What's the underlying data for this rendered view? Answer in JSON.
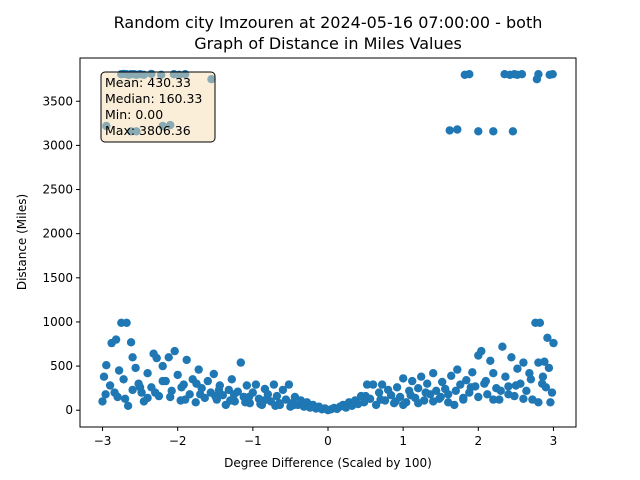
{
  "chart_data": {
    "type": "scatter",
    "title_line1": "Random city Imzouren at 2024-05-16 07:00:00  - both",
    "title_line2": "Graph of Distance in Miles Values",
    "xlabel": "Degree Difference (Scaled by 100)",
    "ylabel": "Distance (Miles)",
    "xlim": [
      -3.3,
      3.3
    ],
    "ylim": [
      -190,
      3990
    ],
    "x_ticks": [
      -3,
      -2,
      -1,
      0,
      1,
      2,
      3
    ],
    "y_ticks": [
      0,
      500,
      1000,
      1500,
      2000,
      2500,
      3000,
      3500
    ],
    "grid": false,
    "point_color": "#1f77b4",
    "stats_box": {
      "placement": "top-left",
      "lines": [
        "Mean: 430.33",
        "Median: 160.33",
        "Min: 0.00",
        "Max: 3806.36"
      ],
      "face_color": "#f5deb3",
      "edge_color": "#000000"
    },
    "points": [
      [
        -2.75,
        3806
      ],
      [
        -2.72,
        3810
      ],
      [
        -2.68,
        3806
      ],
      [
        -2.65,
        3800
      ],
      [
        -2.62,
        3806
      ],
      [
        -2.58,
        3806
      ],
      [
        -2.55,
        3800
      ],
      [
        -2.5,
        3806
      ],
      [
        -2.45,
        3800
      ],
      [
        -2.35,
        3810
      ],
      [
        -2.22,
        3800
      ],
      [
        -2.05,
        3806
      ],
      [
        -1.98,
        3800
      ],
      [
        -1.9,
        3806
      ],
      [
        -1.55,
        3750
      ],
      [
        -2.95,
        3220
      ],
      [
        -2.62,
        3160
      ],
      [
        -2.55,
        3160
      ],
      [
        -2.2,
        3220
      ],
      [
        -2.1,
        3230
      ],
      [
        1.62,
        3170
      ],
      [
        1.72,
        3180
      ],
      [
        1.82,
        3800
      ],
      [
        1.88,
        3806
      ],
      [
        2.0,
        3160
      ],
      [
        2.2,
        3160
      ],
      [
        2.35,
        3806
      ],
      [
        2.42,
        3800
      ],
      [
        2.48,
        3806
      ],
      [
        2.52,
        3800
      ],
      [
        2.58,
        3806
      ],
      [
        2.46,
        3160
      ],
      [
        2.78,
        3750
      ],
      [
        2.8,
        3806
      ],
      [
        2.95,
        3800
      ],
      [
        2.99,
        3806
      ],
      [
        -2.75,
        990
      ],
      [
        -2.68,
        990
      ],
      [
        -2.62,
        770
      ],
      [
        -2.82,
        800
      ],
      [
        -2.88,
        760
      ],
      [
        -2.95,
        510
      ],
      [
        -2.98,
        380
      ],
      [
        -2.9,
        280
      ],
      [
        -2.96,
        180
      ],
      [
        -3.0,
        100
      ],
      [
        -2.84,
        200
      ],
      [
        -2.78,
        450
      ],
      [
        -2.72,
        350
      ],
      [
        -2.7,
        130
      ],
      [
        -2.66,
        50
      ],
      [
        -2.6,
        600
      ],
      [
        -2.56,
        480
      ],
      [
        -2.52,
        300
      ],
      [
        -2.48,
        200
      ],
      [
        -2.45,
        100
      ],
      [
        -2.4,
        420
      ],
      [
        -2.35,
        260
      ],
      [
        -2.32,
        640
      ],
      [
        -2.28,
        590
      ],
      [
        -2.25,
        160
      ],
      [
        -2.2,
        500
      ],
      [
        -2.16,
        330
      ],
      [
        -2.12,
        600
      ],
      [
        -2.08,
        220
      ],
      [
        -2.04,
        670
      ],
      [
        -2.0,
        400
      ],
      [
        -1.96,
        110
      ],
      [
        -1.92,
        290
      ],
      [
        -1.88,
        570
      ],
      [
        -1.84,
        180
      ],
      [
        -1.8,
        350
      ],
      [
        -1.76,
        90
      ],
      [
        -1.72,
        460
      ],
      [
        -1.68,
        250
      ],
      [
        -1.64,
        140
      ],
      [
        -1.6,
        330
      ],
      [
        -1.56,
        200
      ],
      [
        -1.52,
        410
      ],
      [
        -1.48,
        120
      ],
      [
        -1.44,
        280
      ],
      [
        -1.4,
        170
      ],
      [
        -1.36,
        60
      ],
      [
        -1.32,
        230
      ],
      [
        -1.28,
        350
      ],
      [
        -1.24,
        100
      ],
      [
        -1.2,
        210
      ],
      [
        -1.16,
        540
      ],
      [
        -1.12,
        150
      ],
      [
        -1.08,
        280
      ],
      [
        -1.04,
        80
      ],
      [
        -1.0,
        200
      ],
      [
        -0.96,
        290
      ],
      [
        -0.92,
        130
      ],
      [
        -0.88,
        60
      ],
      [
        -0.84,
        240
      ],
      [
        -0.8,
        180
      ],
      [
        -0.76,
        100
      ],
      [
        -0.72,
        290
      ],
      [
        -0.68,
        160
      ],
      [
        -0.64,
        60
      ],
      [
        -0.6,
        230
      ],
      [
        -0.56,
        120
      ],
      [
        -0.52,
        290
      ],
      [
        -0.48,
        80
      ],
      [
        -0.44,
        150
      ],
      [
        -0.4,
        60
      ],
      [
        -0.36,
        110
      ],
      [
        -0.32,
        40
      ],
      [
        -0.28,
        90
      ],
      [
        -0.24,
        30
      ],
      [
        -0.2,
        60
      ],
      [
        -0.16,
        20
      ],
      [
        -0.12,
        40
      ],
      [
        -0.08,
        10
      ],
      [
        -0.04,
        20
      ],
      [
        -2.5,
        260
      ],
      [
        -2.3,
        200
      ],
      [
        -2.1,
        150
      ],
      [
        -1.9,
        120
      ],
      [
        -1.7,
        180
      ],
      [
        -1.5,
        160
      ],
      [
        -1.3,
        110
      ],
      [
        -1.1,
        90
      ],
      [
        -0.9,
        70
      ],
      [
        -0.7,
        50
      ],
      [
        -0.5,
        40
      ],
      [
        -2.8,
        150
      ],
      [
        -2.6,
        230
      ],
      [
        -2.4,
        140
      ],
      [
        -2.2,
        330
      ],
      [
        -1.95,
        260
      ],
      [
        -1.75,
        300
      ],
      [
        -1.45,
        230
      ],
      [
        -1.25,
        180
      ],
      [
        -1.05,
        150
      ],
      [
        -0.85,
        110
      ],
      [
        -0.65,
        80
      ],
      [
        -0.45,
        60
      ],
      [
        0.0,
        0
      ],
      [
        0.04,
        10
      ],
      [
        0.08,
        25
      ],
      [
        0.12,
        15
      ],
      [
        0.16,
        40
      ],
      [
        0.2,
        60
      ],
      [
        0.24,
        30
      ],
      [
        0.28,
        90
      ],
      [
        0.32,
        50
      ],
      [
        0.36,
        110
      ],
      [
        0.4,
        70
      ],
      [
        0.44,
        160
      ],
      [
        0.48,
        90
      ],
      [
        0.52,
        290
      ],
      [
        0.56,
        130
      ],
      [
        0.6,
        290
      ],
      [
        0.64,
        60
      ],
      [
        0.68,
        200
      ],
      [
        0.72,
        290
      ],
      [
        0.76,
        110
      ],
      [
        0.8,
        230
      ],
      [
        0.84,
        170
      ],
      [
        0.88,
        80
      ],
      [
        0.92,
        260
      ],
      [
        0.96,
        150
      ],
      [
        1.0,
        360
      ],
      [
        1.04,
        90
      ],
      [
        1.08,
        220
      ],
      [
        1.12,
        330
      ],
      [
        1.16,
        140
      ],
      [
        1.2,
        250
      ],
      [
        1.24,
        380
      ],
      [
        1.28,
        110
      ],
      [
        1.32,
        300
      ],
      [
        1.36,
        180
      ],
      [
        1.4,
        420
      ],
      [
        1.44,
        220
      ],
      [
        1.48,
        130
      ],
      [
        1.52,
        320
      ],
      [
        1.56,
        240
      ],
      [
        1.6,
        180
      ],
      [
        1.64,
        390
      ],
      [
        1.68,
        60
      ],
      [
        1.72,
        460
      ],
      [
        1.76,
        290
      ],
      [
        1.8,
        140
      ],
      [
        1.84,
        340
      ],
      [
        1.88,
        200
      ],
      [
        1.92,
        430
      ],
      [
        1.96,
        270
      ],
      [
        2.0,
        620
      ],
      [
        2.04,
        670
      ],
      [
        2.08,
        300
      ],
      [
        2.12,
        180
      ],
      [
        2.16,
        560
      ],
      [
        2.2,
        420
      ],
      [
        2.24,
        250
      ],
      [
        2.28,
        120
      ],
      [
        2.32,
        720
      ],
      [
        2.36,
        380
      ],
      [
        2.4,
        270
      ],
      [
        2.44,
        600
      ],
      [
        2.48,
        160
      ],
      [
        2.52,
        470
      ],
      [
        2.56,
        300
      ],
      [
        2.6,
        540
      ],
      [
        2.64,
        220
      ],
      [
        2.68,
        420
      ],
      [
        2.72,
        120
      ],
      [
        2.76,
        990
      ],
      [
        2.8,
        540
      ],
      [
        2.82,
        990
      ],
      [
        2.86,
        380
      ],
      [
        2.88,
        550
      ],
      [
        2.9,
        260
      ],
      [
        2.92,
        820
      ],
      [
        2.94,
        480
      ],
      [
        2.96,
        90
      ],
      [
        2.98,
        200
      ],
      [
        3.0,
        760
      ],
      [
        0.5,
        160
      ],
      [
        0.7,
        120
      ],
      [
        0.9,
        100
      ],
      [
        1.1,
        170
      ],
      [
        1.3,
        200
      ],
      [
        1.5,
        150
      ],
      [
        1.7,
        220
      ],
      [
        1.9,
        260
      ],
      [
        2.1,
        330
      ],
      [
        2.3,
        220
      ],
      [
        2.5,
        280
      ],
      [
        2.7,
        350
      ],
      [
        2.85,
        300
      ],
      [
        1.0,
        60
      ],
      [
        1.2,
        80
      ],
      [
        1.4,
        100
      ],
      [
        1.6,
        90
      ],
      [
        1.8,
        120
      ],
      [
        2.0,
        150
      ],
      [
        2.2,
        120
      ],
      [
        2.4,
        180
      ],
      [
        2.6,
        130
      ],
      [
        2.8,
        90
      ]
    ]
  }
}
